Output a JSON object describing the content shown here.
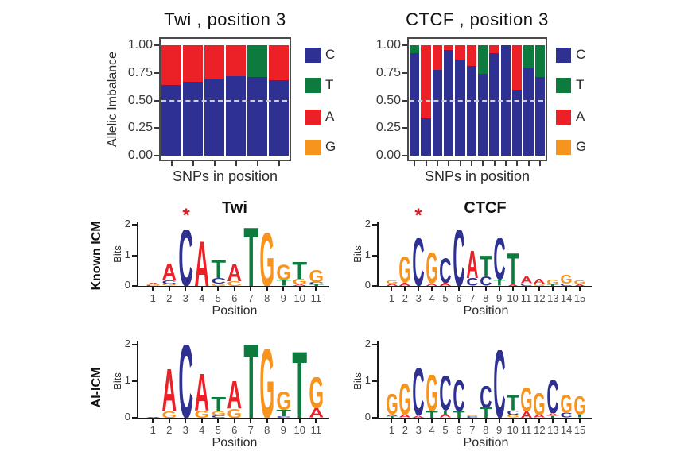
{
  "colors": {
    "C": "#2e3192",
    "T": "#0c7b3d",
    "A": "#ec2027",
    "G": "#f7941e",
    "dash": "#cfcfcf",
    "star": "#d42027"
  },
  "row_labels": [
    "Known ICM",
    "AI-ICM"
  ],
  "chart_data": [
    {
      "type": "stacked-bar",
      "title": "Twi , position 3",
      "ylabel": "Allelic Imbalance",
      "xlabel": "SNPs in position",
      "ylim": [
        0,
        1
      ],
      "hline": 0.5,
      "yticks": [
        {
          "label": "1.00",
          "v": 1.0
        },
        {
          "label": "0.75",
          "v": 0.75
        },
        {
          "label": "0.50",
          "v": 0.5
        },
        {
          "label": "0.25",
          "v": 0.25
        },
        {
          "label": "0.00",
          "v": 0.0
        }
      ],
      "legend": [
        "C",
        "T",
        "A",
        "G"
      ],
      "bars": [
        [
          [
            "C",
            0.64
          ],
          [
            "A",
            0.36
          ]
        ],
        [
          [
            "C",
            0.67
          ],
          [
            "A",
            0.33
          ]
        ],
        [
          [
            "C",
            0.7
          ],
          [
            "A",
            0.3
          ]
        ],
        [
          [
            "C",
            0.72
          ],
          [
            "A",
            0.28
          ]
        ],
        [
          [
            "C",
            0.71
          ],
          [
            "T",
            0.29
          ]
        ],
        [
          [
            "C",
            0.68
          ],
          [
            "A",
            0.32
          ]
        ]
      ]
    },
    {
      "type": "stacked-bar",
      "title": "CTCF , position 3",
      "ylabel": "",
      "xlabel": "SNPs in position",
      "ylim": [
        0,
        1
      ],
      "hline": 0.5,
      "yticks": [
        {
          "label": "1.00",
          "v": 1.0
        },
        {
          "label": "0.75",
          "v": 0.75
        },
        {
          "label": "0.50",
          "v": 0.5
        },
        {
          "label": "0.25",
          "v": 0.25
        },
        {
          "label": "0.00",
          "v": 0.0
        }
      ],
      "legend": [
        "C",
        "T",
        "A",
        "G"
      ],
      "bars": [
        [
          [
            "C",
            0.93
          ],
          [
            "T",
            0.07
          ]
        ],
        [
          [
            "C",
            0.34
          ],
          [
            "A",
            0.66
          ]
        ],
        [
          [
            "C",
            0.78
          ],
          [
            "A",
            0.22
          ]
        ],
        [
          [
            "C",
            0.96
          ],
          [
            "A",
            0.04
          ]
        ],
        [
          [
            "C",
            0.87
          ],
          [
            "A",
            0.13
          ]
        ],
        [
          [
            "C",
            0.81
          ],
          [
            "A",
            0.19
          ]
        ],
        [
          [
            "C",
            0.74
          ],
          [
            "T",
            0.26
          ]
        ],
        [
          [
            "C",
            0.93
          ],
          [
            "A",
            0.07
          ]
        ],
        [
          [
            "C",
            1.0
          ]
        ],
        [
          [
            "C",
            0.6
          ],
          [
            "A",
            0.4
          ]
        ],
        [
          [
            "C",
            0.79
          ],
          [
            "T",
            0.21
          ]
        ],
        [
          [
            "C",
            0.71
          ],
          [
            "T",
            0.29
          ]
        ]
      ]
    },
    {
      "type": "logo",
      "row": "Known ICM",
      "title": "Twi",
      "ylabel": "Bits",
      "xlabel": "Position",
      "ylim": [
        0,
        2
      ],
      "yticks": [
        0,
        1,
        2
      ],
      "star": "*",
      "star_position": 3,
      "xticks": [
        1,
        2,
        3,
        4,
        5,
        6,
        7,
        8,
        9,
        10,
        11
      ],
      "columns": [
        [
          [
            "C",
            0.03
          ],
          [
            "G",
            0.03
          ],
          [
            "A",
            0.05
          ]
        ],
        [
          [
            "G",
            0.07
          ],
          [
            "C",
            0.12
          ],
          [
            "A",
            0.55
          ]
        ],
        [
          [
            "C",
            1.85
          ]
        ],
        [
          [
            "A",
            1.45
          ]
        ],
        [
          [
            "G",
            0.08
          ],
          [
            "C",
            0.18
          ],
          [
            "T",
            0.6
          ]
        ],
        [
          [
            "G",
            0.15
          ],
          [
            "A",
            0.55
          ]
        ],
        [
          [
            "T",
            1.9
          ]
        ],
        [
          [
            "G",
            1.75
          ]
        ],
        [
          [
            "T",
            0.2
          ],
          [
            "G",
            0.5
          ]
        ],
        [
          [
            "A",
            0.05
          ],
          [
            "G",
            0.18
          ],
          [
            "T",
            0.55
          ]
        ],
        [
          [
            "T",
            0.06
          ],
          [
            "C",
            0.06
          ],
          [
            "G",
            0.4
          ]
        ]
      ]
    },
    {
      "type": "logo",
      "row": "Known ICM",
      "title": "CTCF",
      "ylabel": "Bits",
      "xlabel": "Position",
      "ylim": [
        0,
        2
      ],
      "yticks": [
        0,
        1,
        2
      ],
      "star": "*",
      "star_position": 3,
      "xticks": [
        1,
        2,
        3,
        4,
        5,
        6,
        7,
        8,
        9,
        10,
        11,
        12,
        13,
        14,
        15
      ],
      "columns": [
        [
          [
            "A",
            0.08
          ],
          [
            "G",
            0.1
          ]
        ],
        [
          [
            "A",
            0.1
          ],
          [
            "G",
            0.85
          ]
        ],
        [
          [
            "C",
            1.55
          ]
        ],
        [
          [
            "A",
            0.08
          ],
          [
            "G",
            1.0
          ]
        ],
        [
          [
            "A",
            0.1
          ],
          [
            "C",
            0.8
          ]
        ],
        [
          [
            "C",
            1.85
          ]
        ],
        [
          [
            "C",
            0.25
          ],
          [
            "A",
            0.9
          ]
        ],
        [
          [
            "C",
            0.3
          ],
          [
            "T",
            0.7
          ]
        ],
        [
          [
            "T",
            0.2
          ],
          [
            "C",
            1.35
          ]
        ],
        [
          [
            "A",
            0.06
          ],
          [
            "T",
            1.0
          ]
        ],
        [
          [
            "C",
            0.08
          ],
          [
            "A",
            0.22
          ]
        ],
        [
          [
            "G",
            0.08
          ],
          [
            "A",
            0.15
          ]
        ],
        [
          [
            "T",
            0.06
          ],
          [
            "G",
            0.15
          ]
        ],
        [
          [
            "C",
            0.08
          ],
          [
            "G",
            0.28
          ]
        ],
        [
          [
            "A",
            0.06
          ],
          [
            "G",
            0.12
          ]
        ]
      ]
    },
    {
      "type": "logo",
      "row": "AI-ICM",
      "title": "",
      "ylabel": "Bits",
      "xlabel": "Position",
      "ylim": [
        0,
        2
      ],
      "yticks": [
        0,
        1,
        2
      ],
      "xticks": [
        1,
        2,
        3,
        4,
        5,
        6,
        7,
        8,
        9,
        10,
        11
      ],
      "columns": [
        [
          [
            "A",
            0.02
          ]
        ],
        [
          [
            "G",
            0.18
          ],
          [
            "A",
            1.15
          ]
        ],
        [
          [
            "C",
            2.0
          ]
        ],
        [
          [
            "G",
            0.2
          ],
          [
            "A",
            1.0
          ]
        ],
        [
          [
            "C",
            0.07
          ],
          [
            "G",
            0.1
          ],
          [
            "T",
            0.4
          ]
        ],
        [
          [
            "G",
            0.25
          ],
          [
            "A",
            0.75
          ]
        ],
        [
          [
            "T",
            2.0
          ]
        ],
        [
          [
            "G",
            1.9
          ]
        ],
        [
          [
            "C",
            0.04
          ],
          [
            "T",
            0.18
          ],
          [
            "G",
            0.5
          ]
        ],
        [
          [
            "T",
            1.8
          ]
        ],
        [
          [
            "A",
            0.25
          ],
          [
            "G",
            0.85
          ]
        ]
      ]
    },
    {
      "type": "logo",
      "row": "AI-ICM",
      "title": "",
      "ylabel": "Bits",
      "xlabel": "Position",
      "ylim": [
        0,
        2
      ],
      "yticks": [
        0,
        1,
        2
      ],
      "xticks": [
        1,
        2,
        3,
        4,
        5,
        6,
        7,
        8,
        9,
        10,
        11,
        12,
        13,
        14,
        15
      ],
      "columns": [
        [
          [
            "T",
            0.04
          ],
          [
            "A",
            0.06
          ],
          [
            "G",
            0.55
          ]
        ],
        [
          [
            "A",
            0.08
          ],
          [
            "G",
            0.85
          ]
        ],
        [
          [
            "A",
            0.06
          ],
          [
            "C",
            1.3
          ]
        ],
        [
          [
            "T",
            0.18
          ],
          [
            "G",
            1.0
          ]
        ],
        [
          [
            "A",
            0.1
          ],
          [
            "T",
            0.1
          ],
          [
            "C",
            0.95
          ]
        ],
        [
          [
            "T",
            0.18
          ],
          [
            "C",
            0.85
          ]
        ],
        [
          [
            "C",
            0.04
          ],
          [
            "G",
            0.04
          ]
        ],
        [
          [
            "T",
            0.28
          ],
          [
            "C",
            0.6
          ]
        ],
        [
          [
            "C",
            1.85
          ]
        ],
        [
          [
            "G",
            0.08
          ],
          [
            "C",
            0.12
          ],
          [
            "T",
            0.42
          ]
        ],
        [
          [
            "A",
            0.18
          ],
          [
            "G",
            0.65
          ]
        ],
        [
          [
            "A",
            0.08
          ],
          [
            "G",
            0.6
          ]
        ],
        [
          [
            "T",
            0.06
          ],
          [
            "A",
            0.06
          ],
          [
            "C",
            0.9
          ]
        ],
        [
          [
            "C",
            0.12
          ],
          [
            "G",
            0.5
          ]
        ],
        [
          [
            "T",
            0.08
          ],
          [
            "G",
            0.5
          ]
        ]
      ]
    }
  ]
}
